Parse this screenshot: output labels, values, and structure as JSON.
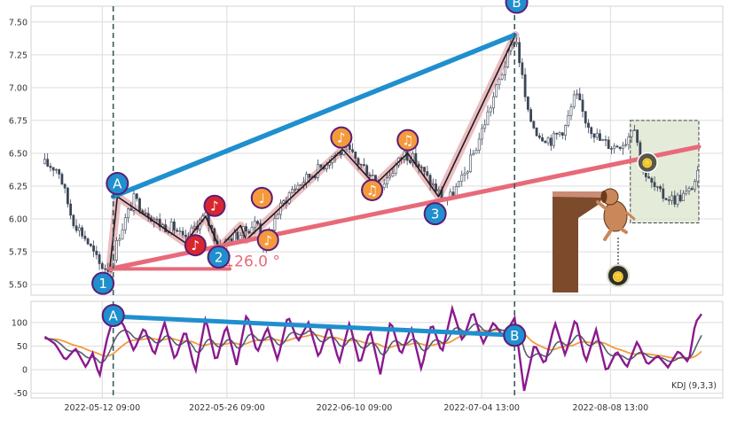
{
  "chart_data": [
    {
      "type": "candlestick",
      "panel": "price",
      "ylim": [
        5.42,
        7.62
      ],
      "y_ticks": [
        5.5,
        5.75,
        6.0,
        6.25,
        6.5,
        6.75,
        7.0,
        7.25,
        7.5
      ],
      "y_tick_labels": [
        "5.50",
        "5.75",
        "6.00",
        "6.25",
        "6.50",
        "6.75",
        "7.00",
        "7.25",
        "7.50"
      ],
      "grid": true,
      "close_path": [
        {
          "t": 0.0,
          "v": 6.42
        },
        {
          "t": 2.0,
          "v": 6.38
        },
        {
          "t": 4.0,
          "v": 6.0
        },
        {
          "t": 6.0,
          "v": 5.85
        },
        {
          "t": 8.0,
          "v": 5.65
        },
        {
          "t": 9.5,
          "v": 5.62
        },
        {
          "t": 11.0,
          "v": 5.9
        },
        {
          "t": 13.0,
          "v": 6.15
        },
        {
          "t": 15.0,
          "v": 6.05
        },
        {
          "t": 17.0,
          "v": 5.95
        },
        {
          "t": 19.0,
          "v": 5.93
        },
        {
          "t": 20.5,
          "v": 5.82
        },
        {
          "t": 22.0,
          "v": 5.95
        },
        {
          "t": 23.5,
          "v": 6.02
        },
        {
          "t": 25.5,
          "v": 5.78
        },
        {
          "t": 27.0,
          "v": 5.85
        },
        {
          "t": 29.0,
          "v": 5.9
        },
        {
          "t": 31.0,
          "v": 5.98
        },
        {
          "t": 32.0,
          "v": 5.8
        },
        {
          "t": 34.0,
          "v": 6.05
        },
        {
          "t": 36.0,
          "v": 6.22
        },
        {
          "t": 38.0,
          "v": 6.3
        },
        {
          "t": 40.0,
          "v": 6.38
        },
        {
          "t": 42.0,
          "v": 6.48
        },
        {
          "t": 44.0,
          "v": 6.53
        },
        {
          "t": 46.0,
          "v": 6.42
        },
        {
          "t": 48.0,
          "v": 6.33
        },
        {
          "t": 49.0,
          "v": 6.25
        },
        {
          "t": 50.5,
          "v": 6.35
        },
        {
          "t": 52.5,
          "v": 6.5
        },
        {
          "t": 54.0,
          "v": 6.45
        },
        {
          "t": 56.0,
          "v": 6.3
        },
        {
          "t": 58.0,
          "v": 6.17
        },
        {
          "t": 59.0,
          "v": 6.15
        },
        {
          "t": 61.0,
          "v": 6.3
        },
        {
          "t": 63.0,
          "v": 6.55
        },
        {
          "t": 65.0,
          "v": 6.85
        },
        {
          "t": 67.0,
          "v": 7.15
        },
        {
          "t": 68.7,
          "v": 7.4
        },
        {
          "t": 69.5,
          "v": 7.15
        },
        {
          "t": 70.5,
          "v": 6.8
        },
        {
          "t": 72.0,
          "v": 6.65
        },
        {
          "t": 74.0,
          "v": 6.6
        },
        {
          "t": 76.0,
          "v": 6.7
        },
        {
          "t": 77.5,
          "v": 6.95
        },
        {
          "t": 79.0,
          "v": 6.75
        },
        {
          "t": 81.0,
          "v": 6.6
        },
        {
          "t": 83.0,
          "v": 6.55
        },
        {
          "t": 85.0,
          "v": 6.6
        },
        {
          "t": 86.0,
          "v": 6.75
        },
        {
          "t": 87.0,
          "v": 6.45
        },
        {
          "t": 88.0,
          "v": 6.3
        },
        {
          "t": 90.0,
          "v": 6.18
        },
        {
          "t": 92.0,
          "v": 6.15
        },
        {
          "t": 94.0,
          "v": 6.2
        },
        {
          "t": 95.5,
          "v": 6.35
        }
      ],
      "x_tick_labels": [
        {
          "t": 8.4,
          "label": "2022-05-12 09:00"
        },
        {
          "t": 26.6,
          "label": "2022-05-26 09:00"
        },
        {
          "t": 45.2,
          "label": "2022-06-10 09:00"
        },
        {
          "t": 63.8,
          "label": "2022-07-04 13:00"
        },
        {
          "t": 82.6,
          "label": "2022-08-08 13:00"
        }
      ],
      "vertical_markers": [
        10.0,
        68.6
      ],
      "wedge_upper": {
        "from": {
          "t": 10.0,
          "v": 6.17
        },
        "to": {
          "t": 68.6,
          "v": 7.4
        },
        "color": "#1f8fce"
      },
      "wedge_lower": {
        "from": {
          "t": 9.5,
          "v": 5.62
        },
        "to": {
          "t": 95.5,
          "v": 6.55
        },
        "color": "#e76a7a"
      },
      "angle_label": "26.0 °",
      "zigzag": [
        {
          "t": 9.5,
          "v": 5.62
        },
        {
          "t": 10.6,
          "v": 6.17
        },
        {
          "t": 20.5,
          "v": 5.82
        },
        {
          "t": 23.5,
          "v": 6.02
        },
        {
          "t": 25.5,
          "v": 5.78
        },
        {
          "t": 28.6,
          "v": 5.95
        },
        {
          "t": 29.4,
          "v": 5.84
        },
        {
          "t": 43.5,
          "v": 6.53
        },
        {
          "t": 48.2,
          "v": 6.26
        },
        {
          "t": 53.0,
          "v": 6.5
        },
        {
          "t": 57.5,
          "v": 6.17
        },
        {
          "t": 68.7,
          "v": 7.4
        }
      ],
      "pivot_markers": [
        {
          "label": "1",
          "t": 8.5,
          "v": 5.51,
          "fill": "#1f8fce"
        },
        {
          "label": "A",
          "t": 10.6,
          "v": 6.27,
          "fill": "#1f8fce"
        },
        {
          "label": "2",
          "t": 25.4,
          "v": 5.71,
          "fill": "#1f8fce"
        },
        {
          "label": "3",
          "t": 57.0,
          "v": 6.04,
          "fill": "#1f8fce"
        },
        {
          "label": "B",
          "t": 68.9,
          "v": 7.65,
          "fill": "#1f8fce"
        }
      ],
      "note_markers": [
        {
          "label": "♪",
          "t": 22.0,
          "v": 5.8,
          "fill": "#d9262e"
        },
        {
          "label": "♪",
          "t": 24.8,
          "v": 6.1,
          "fill": "#d9262e"
        },
        {
          "label": "♩",
          "t": 31.7,
          "v": 6.16,
          "fill": "#f49a3c"
        },
        {
          "label": "♪",
          "t": 32.6,
          "v": 5.84,
          "fill": "#f49a3c"
        },
        {
          "label": "♪",
          "t": 43.3,
          "v": 6.62,
          "fill": "#f49a3c"
        },
        {
          "label": "♫",
          "t": 47.8,
          "v": 6.22,
          "fill": "#f49a3c"
        },
        {
          "label": "♫",
          "t": 53.0,
          "v": 6.6,
          "fill": "#f49a3c"
        }
      ],
      "target_box": {
        "t0": 85.5,
        "t1": 95.5,
        "v0": 5.97,
        "v1": 6.75,
        "color": "#dfe7d2"
      },
      "chip_labels": [
        "🪙",
        "🪙"
      ]
    },
    {
      "type": "line",
      "panel": "oscillator",
      "indicator": "KDJ (9,3,3)",
      "ylim": [
        -60,
        145
      ],
      "y_ticks": [
        -50,
        0,
        50,
        100
      ],
      "y_tick_labels": [
        "-50",
        "0",
        "50",
        "100"
      ],
      "series": [
        {
          "name": "K",
          "color": "#555e6e"
        },
        {
          "name": "D",
          "color": "#f49a3c"
        },
        {
          "name": "J",
          "color": "#8a1a8e"
        }
      ],
      "j_path": [
        {
          "t": 0.0,
          "v": 70
        },
        {
          "t": 1.5,
          "v": 55
        },
        {
          "t": 3.0,
          "v": 20
        },
        {
          "t": 4.5,
          "v": 45
        },
        {
          "t": 6.0,
          "v": 5
        },
        {
          "t": 7.0,
          "v": 35
        },
        {
          "t": 8.0,
          "v": -15
        },
        {
          "t": 9.0,
          "v": 60
        },
        {
          "t": 10.2,
          "v": 120
        },
        {
          "t": 11.5,
          "v": 95
        },
        {
          "t": 13.0,
          "v": 40
        },
        {
          "t": 14.5,
          "v": 90
        },
        {
          "t": 16.0,
          "v": 30
        },
        {
          "t": 17.5,
          "v": 100
        },
        {
          "t": 19.0,
          "v": 20
        },
        {
          "t": 20.5,
          "v": 85
        },
        {
          "t": 22.0,
          "v": -5
        },
        {
          "t": 23.5,
          "v": 110
        },
        {
          "t": 25.0,
          "v": 15
        },
        {
          "t": 26.5,
          "v": 95
        },
        {
          "t": 28.0,
          "v": 10
        },
        {
          "t": 29.5,
          "v": 120
        },
        {
          "t": 31.0,
          "v": 35
        },
        {
          "t": 32.5,
          "v": 90
        },
        {
          "t": 34.0,
          "v": 20
        },
        {
          "t": 35.5,
          "v": 115
        },
        {
          "t": 37.0,
          "v": 60
        },
        {
          "t": 38.5,
          "v": 100
        },
        {
          "t": 40.0,
          "v": 25
        },
        {
          "t": 41.5,
          "v": 95
        },
        {
          "t": 43.0,
          "v": 15
        },
        {
          "t": 44.5,
          "v": 100
        },
        {
          "t": 46.0,
          "v": 10
        },
        {
          "t": 47.5,
          "v": 85
        },
        {
          "t": 49.0,
          "v": -10
        },
        {
          "t": 50.5,
          "v": 105
        },
        {
          "t": 52.0,
          "v": 30
        },
        {
          "t": 53.5,
          "v": 90
        },
        {
          "t": 55.0,
          "v": 0
        },
        {
          "t": 56.5,
          "v": 100
        },
        {
          "t": 58.0,
          "v": 35
        },
        {
          "t": 59.5,
          "v": 130
        },
        {
          "t": 61.0,
          "v": 60
        },
        {
          "t": 62.5,
          "v": 125
        },
        {
          "t": 64.0,
          "v": 55
        },
        {
          "t": 65.5,
          "v": 100
        },
        {
          "t": 67.0,
          "v": 70
        },
        {
          "t": 68.6,
          "v": 110
        },
        {
          "t": 70.0,
          "v": -45
        },
        {
          "t": 71.5,
          "v": 55
        },
        {
          "t": 73.0,
          "v": 10
        },
        {
          "t": 74.5,
          "v": 100
        },
        {
          "t": 76.0,
          "v": 30
        },
        {
          "t": 77.5,
          "v": 110
        },
        {
          "t": 79.0,
          "v": 15
        },
        {
          "t": 80.5,
          "v": 85
        },
        {
          "t": 82.0,
          "v": -5
        },
        {
          "t": 83.5,
          "v": 40
        },
        {
          "t": 85.0,
          "v": 5
        },
        {
          "t": 86.5,
          "v": 60
        },
        {
          "t": 88.0,
          "v": 10
        },
        {
          "t": 89.5,
          "v": 30
        },
        {
          "t": 91.0,
          "v": 5
        },
        {
          "t": 92.5,
          "v": 40
        },
        {
          "t": 94.0,
          "v": 15
        },
        {
          "t": 95.0,
          "v": 100
        },
        {
          "t": 96.0,
          "v": 120
        }
      ],
      "divergence_line": {
        "from": {
          "t": 10.0,
          "v": 113
        },
        "to": {
          "t": 68.6,
          "v": 73
        },
        "color": "#1f8fce"
      },
      "markers": [
        {
          "label": "A",
          "t": 10.0,
          "v": 115,
          "fill": "#1f8fce"
        },
        {
          "label": "B",
          "t": 68.6,
          "v": 73,
          "fill": "#1f8fce"
        }
      ],
      "vertical_markers": [
        10.0,
        68.6
      ]
    }
  ]
}
